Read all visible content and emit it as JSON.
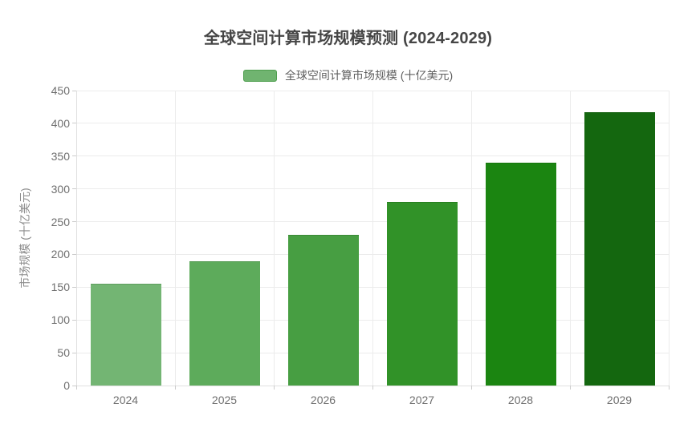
{
  "chart_data": {
    "type": "bar",
    "title": "全球空间计算市场规模预测 (2024-2029)",
    "categories": [
      "2024",
      "2025",
      "2026",
      "2027",
      "2028",
      "2029"
    ],
    "series": [
      {
        "name": "全球空间计算市场规模 (十亿美元)",
        "values": [
          155,
          190,
          230,
          280,
          340,
          417
        ]
      }
    ],
    "bar_colors": [
      "#73b573",
      "#5dab5b",
      "#479e42",
      "#319228",
      "#1b8511",
      "#14670f"
    ],
    "xlabel": "",
    "ylabel": "市场规模 (十亿美元)",
    "ylim": [
      0,
      450
    ],
    "yticks": [
      0,
      50,
      100,
      150,
      200,
      250,
      300,
      350,
      400,
      450
    ],
    "grid": true,
    "legend": {
      "label": "全球空间计算市场规模 (十亿美元)",
      "position": "top",
      "swatch_fill": "#70b470",
      "swatch_border": "#4e9e4e"
    },
    "colors": {
      "grid": "#ececec",
      "axis_line": "#e0e0e0",
      "tick": "#cccccc",
      "tick_label": "#6f6f6f",
      "axis_name": "#8c8c8c",
      "title_text": "#464646",
      "legend_text": "#606060",
      "background": "#ffffff"
    }
  }
}
